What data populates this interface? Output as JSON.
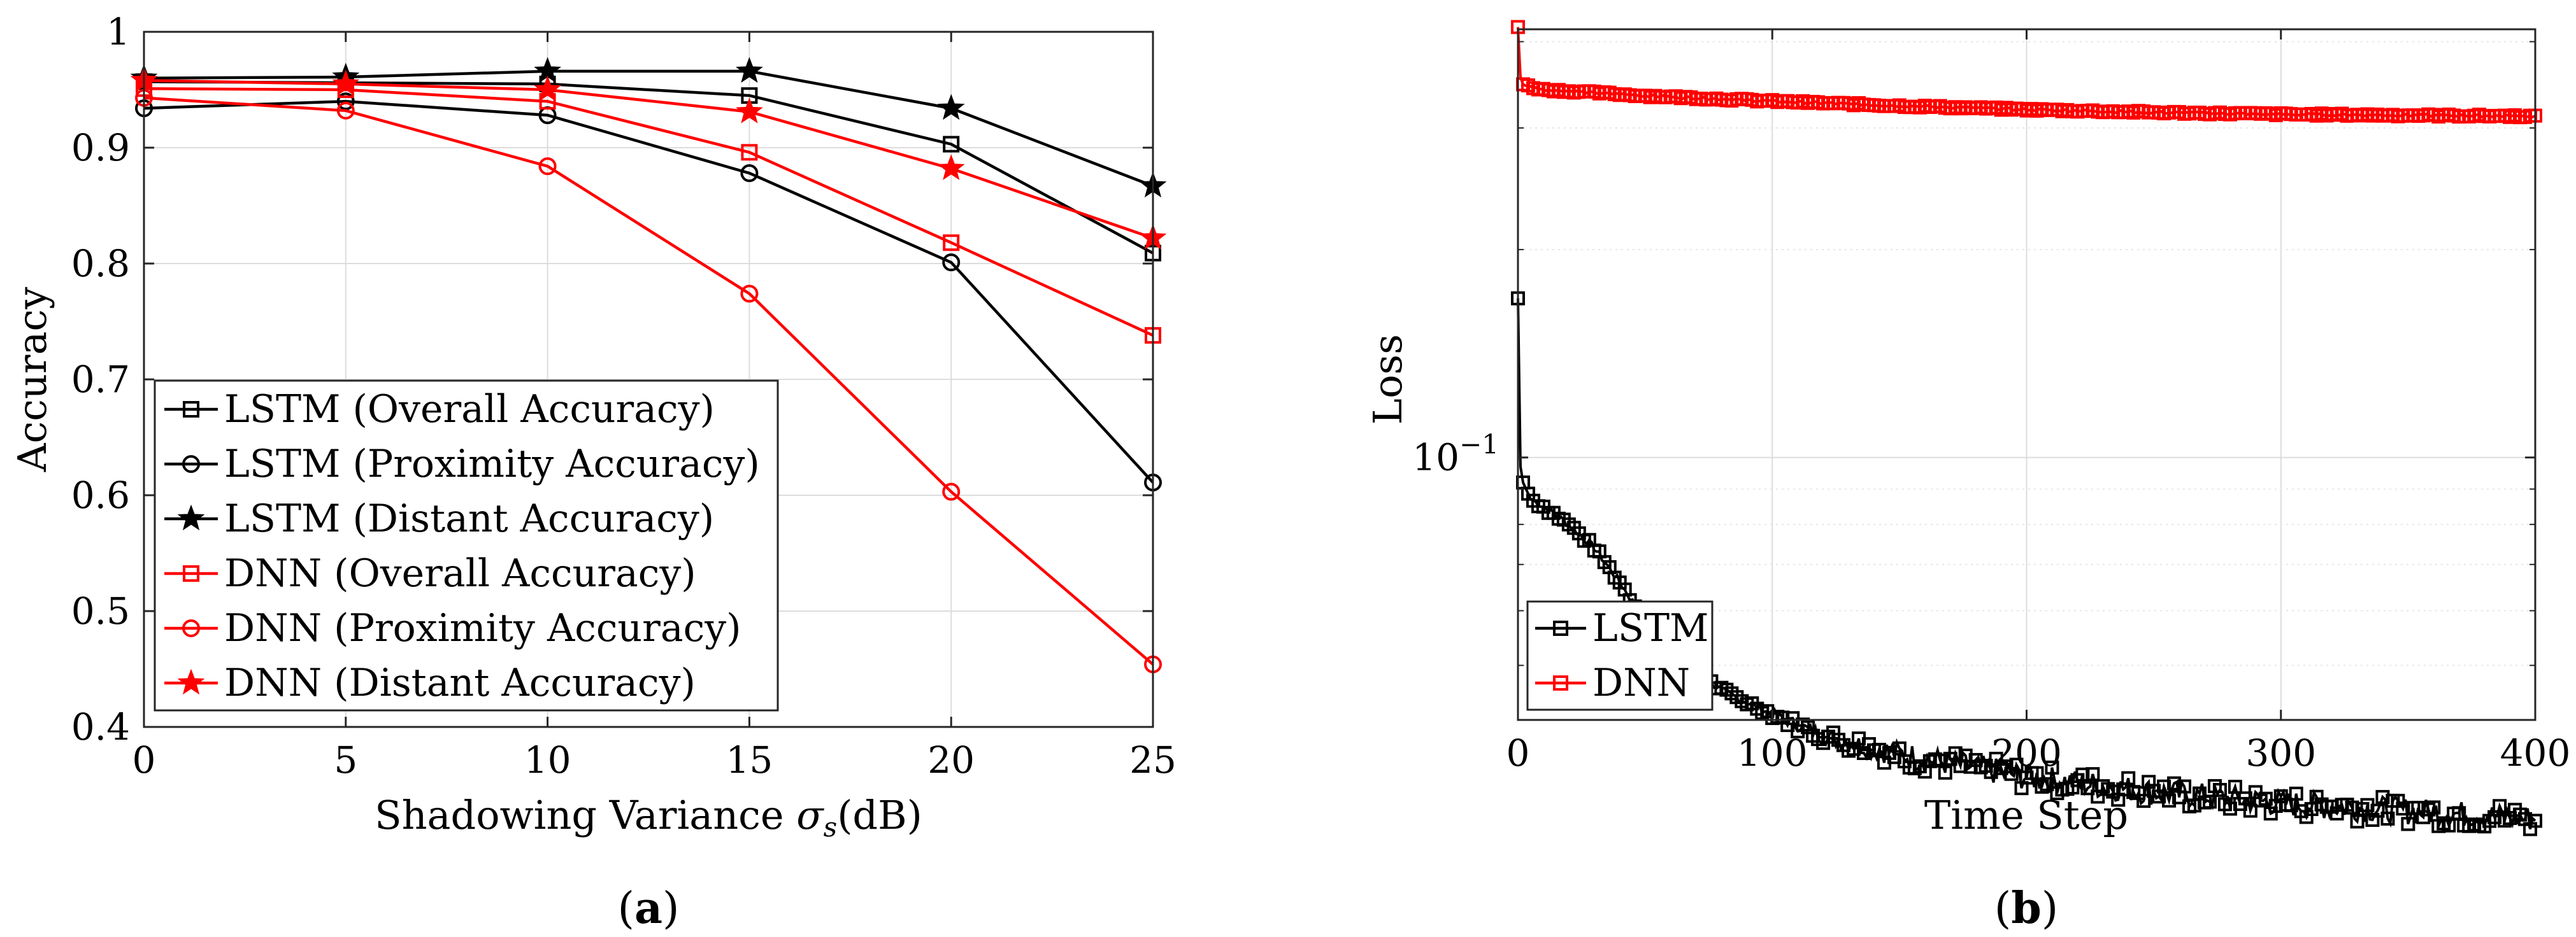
{
  "chart_data": [
    {
      "panel": "a",
      "type": "line",
      "caption_label": "a",
      "xlabel_prefix": "Shadowing Variance ",
      "xlabel_symbol": "σ",
      "xlabel_subscript": "s",
      "xlabel_suffix": "(dB)",
      "ylabel": "Accuracy",
      "xlim": [
        0,
        25
      ],
      "ylim": [
        0.4,
        1.0
      ],
      "x_ticks": [
        "0",
        "5",
        "10",
        "15",
        "20",
        "25"
      ],
      "y_ticks": [
        "0.4",
        "0.5",
        "0.6",
        "0.7",
        "0.8",
        "0.9",
        "1"
      ],
      "grid": true,
      "legend_position": "bottom-left",
      "x": [
        0,
        5,
        10,
        15,
        20,
        25
      ],
      "series": [
        {
          "name": "LSTM (Overall Accuracy)",
          "color": "#000000",
          "marker": "square",
          "values": [
            0.957,
            0.956,
            0.955,
            0.945,
            0.903,
            0.809
          ]
        },
        {
          "name": "LSTM (Proximity Accuracy)",
          "color": "#000000",
          "marker": "circle",
          "values": [
            0.934,
            0.94,
            0.928,
            0.878,
            0.801,
            0.611
          ]
        },
        {
          "name": "LSTM (Distant Accuracy)",
          "color": "#000000",
          "marker": "star",
          "values": [
            0.96,
            0.961,
            0.966,
            0.966,
            0.934,
            0.867
          ]
        },
        {
          "name": "DNN (Overall Accuracy)",
          "color": "#ff0000",
          "marker": "square",
          "values": [
            0.951,
            0.95,
            0.94,
            0.896,
            0.818,
            0.738
          ]
        },
        {
          "name": "DNN (Proximity Accuracy)",
          "color": "#ff0000",
          "marker": "circle",
          "values": [
            0.943,
            0.932,
            0.884,
            0.774,
            0.603,
            0.454
          ]
        },
        {
          "name": "DNN (Distant Accuracy)",
          "color": "#ff0000",
          "marker": "star",
          "values": [
            0.958,
            0.955,
            0.95,
            0.931,
            0.882,
            0.822
          ]
        }
      ]
    },
    {
      "panel": "b",
      "type": "line",
      "caption_label": "b",
      "xlabel": "Time Step",
      "ylabel": "Loss",
      "xlim": [
        0,
        400
      ],
      "ylim_log10": [
        -1.38,
        -0.38
      ],
      "y_scale": "log",
      "x_ticks": [
        "0",
        "100",
        "200",
        "300",
        "400"
      ],
      "y_tick_base": "10",
      "y_tick_exponent": "−1",
      "y_tick_value": 0.1,
      "grid": true,
      "legend_position": "bottom-left",
      "series": [
        {
          "name": "LSTM",
          "color": "#000000",
          "marker": "square",
          "anchors_x": [
            0,
            1,
            2,
            5,
            10,
            20,
            30,
            40,
            50,
            60,
            80,
            100,
            120,
            150,
            200,
            250,
            300,
            350,
            400
          ],
          "anchors_y": [
            0.17,
            0.097,
            0.092,
            0.087,
            0.085,
            0.08,
            0.074,
            0.066,
            0.058,
            0.052,
            0.046,
            0.0425,
            0.0395,
            0.0372,
            0.0345,
            0.0328,
            0.0316,
            0.0308,
            0.03
          ]
        },
        {
          "name": "DNN",
          "color": "#ff0000",
          "marker": "square",
          "anchors_x": [
            0,
            1,
            2,
            5,
            10,
            50,
            100,
            150,
            200,
            250,
            300,
            350,
            400
          ],
          "anchors_y": [
            0.42,
            0.355,
            0.347,
            0.344,
            0.341,
            0.334,
            0.328,
            0.323,
            0.319,
            0.316,
            0.314,
            0.313,
            0.312
          ]
        }
      ]
    }
  ]
}
